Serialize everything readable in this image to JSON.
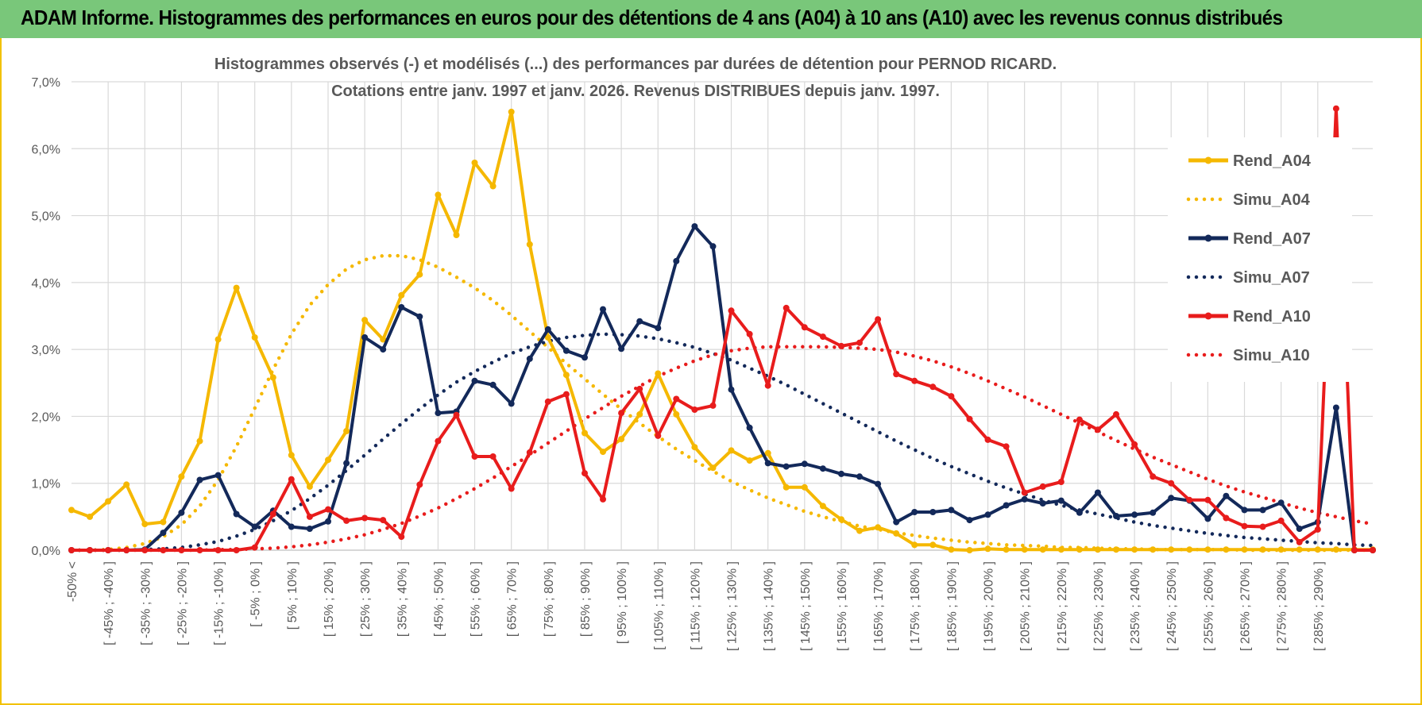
{
  "header": {
    "title": "ADAM Informe. Histogrammes des performances en euros pour des détentions de 4 ans (A04) à 10 ans (A10) avec les revenus connus distribués"
  },
  "chart_data": {
    "type": "line",
    "title_line1": "Histogrammes observés (-) et modélisés (...) des performances par durées de détention pour PERNOD RICARD.",
    "title_line2": "Cotations entre janv. 1997 et janv. 2026. Revenus DISTRIBUES depuis janv. 1997.",
    "ylim": [
      0,
      7
    ],
    "yticks": [
      "0,0%",
      "1,0%",
      "2,0%",
      "3,0%",
      "4,0%",
      "5,0%",
      "6,0%",
      "7,0%"
    ],
    "grid": true,
    "legend_position": "right",
    "categories": [
      "-50% <",
      "[ -50% ; -45% ]",
      "[ -45% ; -40% ]",
      "[ -40% ; -35% ]",
      "[ -35% ; -30% ]",
      "[ -30% ; -25% ]",
      "[ -25% ; -20% ]",
      "[ -20% ; -15% ]",
      "[ -15% ; -10% ]",
      "[ -10% ; -5% ]",
      "[ -5% ; 0% ]",
      "[ 0% ; 5% ]",
      "[ 5% ; 10% ]",
      "[ 10% ; 15% ]",
      "[ 15% ; 20% ]",
      "[ 20% ; 25% ]",
      "[ 25% ; 30% ]",
      "[ 30% ; 35% ]",
      "[ 35% ; 40% ]",
      "[ 40% ; 45% ]",
      "[ 45% ; 50% ]",
      "[ 50% ; 55% ]",
      "[ 55% ; 60% ]",
      "[ 60% ; 65% ]",
      "[ 65% ; 70% ]",
      "[ 70% ; 75% ]",
      "[ 75% ; 80% ]",
      "[ 80% ; 85% ]",
      "[ 85% ; 90% ]",
      "[ 90% ; 95% ]",
      "[ 95% ; 100% ]",
      "[ 100% ; 105% ]",
      "[ 105% ; 110% ]",
      "[ 110% ; 115% ]",
      "[ 115% ; 120% ]",
      "[ 120% ; 125% ]",
      "[ 125% ; 130% ]",
      "[ 130% ; 135% ]",
      "[ 135% ; 140% ]",
      "[ 140% ; 145% ]",
      "[ 145% ; 150% ]",
      "[ 150% ; 155% ]",
      "[ 155% ; 160% ]",
      "[ 160% ; 165% ]",
      "[ 165% ; 170% ]",
      "[ 170% ; 175% ]",
      "[ 175% ; 180% ]",
      "[ 180% ; 185% ]",
      "[ 185% ; 190% ]",
      "[ 190% ; 195% ]",
      "[ 195% ; 200% ]",
      "[ 200% ; 205% ]",
      "[ 205% ; 210% ]",
      "[ 210% ; 215% ]",
      "[ 215% ; 220% ]",
      "[ 220% ; 225% ]",
      "[ 225% ; 230% ]",
      "[ 230% ; 235% ]",
      "[ 235% ; 240% ]",
      "[ 240% ; 245% ]",
      "[ 245% ; 250% ]",
      "[ 250% ; 255% ]",
      "[ 255% ; 260% ]",
      "[ 260% ; 265% ]",
      "[ 265% ; 270% ]",
      "[ 270% ; 275% ]",
      "[ 275% ; 280% ]",
      "[ 280% ; 285% ]",
      "[ 285% ; 290% ]",
      "[ 290% ; 295% ]",
      "[ 295% ; 300% ]",
      "300% >"
    ],
    "visible_tick_labels": [
      "-50% <",
      "[ -45% ; -40% ]",
      "[ -35% ; -30% ]",
      "[ -25% ; -20% ]",
      "[ -15% ; -10% ]",
      "[ -5% ; 0% ]",
      "[ 5% ; 10% ]",
      "[ 15% ; 20% ]",
      "[ 25% ; 30% ]",
      "[ 35% ; 40% ]",
      "[ 45% ; 50% ]",
      "[ 55% ; 60% ]",
      "[ 65% ; 70% ]",
      "[ 75% ; 80% ]",
      "[ 85% ; 90% ]",
      "[ 95% ; 100% ]",
      "[ 105% ; 110% ]",
      "[ 115% ; 120% ]",
      "[ 125% ; 130% ]",
      "[ 135% ; 140% ]",
      "[ 145% ; 150% ]",
      "[ 155% ; 160% ]",
      "[ 165% ; 170% ]",
      "[ 175% ; 180% ]",
      "[ 185% ; 190% ]",
      "[ 195% ; 200% ]",
      "[ 205% ; 210% ]",
      "[ 215% ; 220% ]",
      "[ 225% ; 230% ]",
      "[ 235% ; 240% ]",
      "[ 245% ; 250% ]",
      "[ 255% ; 260% ]",
      "[ 265% ; 270% ]",
      "[ 275% ; 280% ]",
      "[ 285% ; 290% ]"
    ],
    "series": [
      {
        "name": "Rend_A04",
        "color": "#f5b800",
        "style": "solid",
        "markers": true,
        "values": [
          0.6,
          0.5,
          0.73,
          0.98,
          0.39,
          0.42,
          1.1,
          1.63,
          3.15,
          3.92,
          3.18,
          2.58,
          1.42,
          0.95,
          1.35,
          1.78,
          3.44,
          3.15,
          3.81,
          4.12,
          5.31,
          4.71,
          5.79,
          5.44,
          6.55,
          4.57,
          3.18,
          2.62,
          1.75,
          1.47,
          1.66,
          2.03,
          2.64,
          2.03,
          1.54,
          1.23,
          1.49,
          1.34,
          1.45,
          0.94,
          0.94,
          0.66,
          0.46,
          0.29,
          0.34,
          0.25,
          0.08,
          0.08,
          0.01,
          0.0,
          0.02,
          0.01,
          0.01,
          0.01,
          0.01,
          0.01,
          0.01,
          0.01,
          0.01,
          0.01,
          0.01,
          0.01,
          0.01,
          0.01,
          0.01,
          0.01,
          0.01,
          0.01,
          0.01,
          0.01,
          0.01,
          0.01
        ]
      },
      {
        "name": "Simu_A04",
        "color": "#f5b800",
        "style": "dotted",
        "markers": false,
        "values": [
          0.0,
          0.0,
          0.01,
          0.04,
          0.1,
          0.2,
          0.38,
          0.66,
          1.05,
          1.55,
          2.12,
          2.7,
          3.23,
          3.66,
          3.97,
          4.2,
          4.34,
          4.4,
          4.4,
          4.34,
          4.23,
          4.08,
          3.92,
          3.73,
          3.51,
          3.27,
          3.03,
          2.79,
          2.56,
          2.33,
          2.11,
          1.9,
          1.7,
          1.51,
          1.34,
          1.18,
          1.03,
          0.9,
          0.78,
          0.68,
          0.58,
          0.5,
          0.43,
          0.36,
          0.31,
          0.26,
          0.22,
          0.18,
          0.15,
          0.12,
          0.1,
          0.08,
          0.07,
          0.06,
          0.04,
          0.04,
          0.03,
          0.02,
          0.02,
          0.01,
          0.01,
          0.01,
          0.01,
          0.01,
          0.0,
          0.0,
          0.0,
          0.0,
          0.0,
          0.0,
          0.0,
          0.0
        ]
      },
      {
        "name": "Rend_A07",
        "color": "#13295a",
        "style": "solid",
        "markers": true,
        "values": [
          0.0,
          0.0,
          0.0,
          0.0,
          0.01,
          0.26,
          0.56,
          1.05,
          1.12,
          0.54,
          0.35,
          0.59,
          0.35,
          0.32,
          0.43,
          1.3,
          3.18,
          3.0,
          3.63,
          3.49,
          2.05,
          2.07,
          2.53,
          2.47,
          2.19,
          2.86,
          3.3,
          2.98,
          2.88,
          3.6,
          3.01,
          3.42,
          3.32,
          4.32,
          4.84,
          4.54,
          2.4,
          1.83,
          1.3,
          1.25,
          1.29,
          1.22,
          1.14,
          1.1,
          0.99,
          0.42,
          0.57,
          0.57,
          0.6,
          0.45,
          0.53,
          0.67,
          0.76,
          0.7,
          0.74,
          0.56,
          0.86,
          0.51,
          0.53,
          0.56,
          0.78,
          0.74,
          0.47,
          0.81,
          0.6,
          0.6,
          0.71,
          0.32,
          0.42,
          2.13,
          0.0,
          0.0
        ]
      },
      {
        "name": "Simu_A07",
        "color": "#13295a",
        "style": "dotted",
        "markers": false,
        "values": [
          0.0,
          0.0,
          0.0,
          0.0,
          0.01,
          0.02,
          0.04,
          0.08,
          0.13,
          0.21,
          0.31,
          0.44,
          0.59,
          0.77,
          0.97,
          1.19,
          1.42,
          1.66,
          1.89,
          2.11,
          2.32,
          2.51,
          2.67,
          2.81,
          2.94,
          3.04,
          3.12,
          3.18,
          3.21,
          3.23,
          3.22,
          3.2,
          3.16,
          3.1,
          3.03,
          2.94,
          2.84,
          2.72,
          2.6,
          2.47,
          2.33,
          2.19,
          2.05,
          1.91,
          1.77,
          1.63,
          1.5,
          1.37,
          1.25,
          1.14,
          1.03,
          0.93,
          0.84,
          0.75,
          0.67,
          0.6,
          0.54,
          0.48,
          0.42,
          0.37,
          0.33,
          0.29,
          0.25,
          0.22,
          0.19,
          0.17,
          0.15,
          0.13,
          0.11,
          0.1,
          0.08,
          0.07
        ]
      },
      {
        "name": "Rend_A10",
        "color": "#e81c1c",
        "style": "solid",
        "markers": true,
        "values": [
          0.0,
          0.0,
          0.0,
          0.0,
          0.0,
          0.0,
          0.0,
          0.0,
          0.0,
          0.0,
          0.04,
          0.54,
          1.06,
          0.5,
          0.61,
          0.44,
          0.48,
          0.45,
          0.2,
          0.98,
          1.63,
          2.02,
          1.4,
          1.4,
          0.92,
          1.46,
          2.22,
          2.33,
          1.15,
          0.76,
          2.05,
          2.41,
          1.71,
          2.26,
          2.1,
          2.16,
          3.58,
          3.23,
          2.46,
          3.62,
          3.33,
          3.19,
          3.05,
          3.1,
          3.45,
          2.63,
          2.53,
          2.44,
          2.3,
          1.96,
          1.65,
          1.55,
          0.86,
          0.95,
          1.02,
          1.95,
          1.8,
          2.03,
          1.58,
          1.1,
          1.0,
          0.75,
          0.75,
          0.48,
          0.36,
          0.35,
          0.44,
          0.12,
          0.31,
          6.6,
          0.0,
          0.0
        ]
      },
      {
        "name": "Simu_A10",
        "color": "#e81c1c",
        "style": "dotted",
        "markers": false,
        "values": [
          0.0,
          0.0,
          0.0,
          0.0,
          0.0,
          0.0,
          0.0,
          0.0,
          0.01,
          0.01,
          0.02,
          0.03,
          0.05,
          0.08,
          0.12,
          0.17,
          0.23,
          0.31,
          0.4,
          0.51,
          0.63,
          0.77,
          0.92,
          1.08,
          1.25,
          1.42,
          1.6,
          1.78,
          1.96,
          2.13,
          2.3,
          2.45,
          2.6,
          2.72,
          2.83,
          2.92,
          2.98,
          3.02,
          3.04,
          3.04,
          3.04,
          3.04,
          3.03,
          3.02,
          3.0,
          2.96,
          2.9,
          2.83,
          2.74,
          2.64,
          2.53,
          2.41,
          2.29,
          2.16,
          2.03,
          1.9,
          1.77,
          1.64,
          1.51,
          1.39,
          1.28,
          1.17,
          1.06,
          0.96,
          0.87,
          0.79,
          0.71,
          0.63,
          0.56,
          0.5,
          0.44,
          0.39
        ]
      }
    ]
  }
}
